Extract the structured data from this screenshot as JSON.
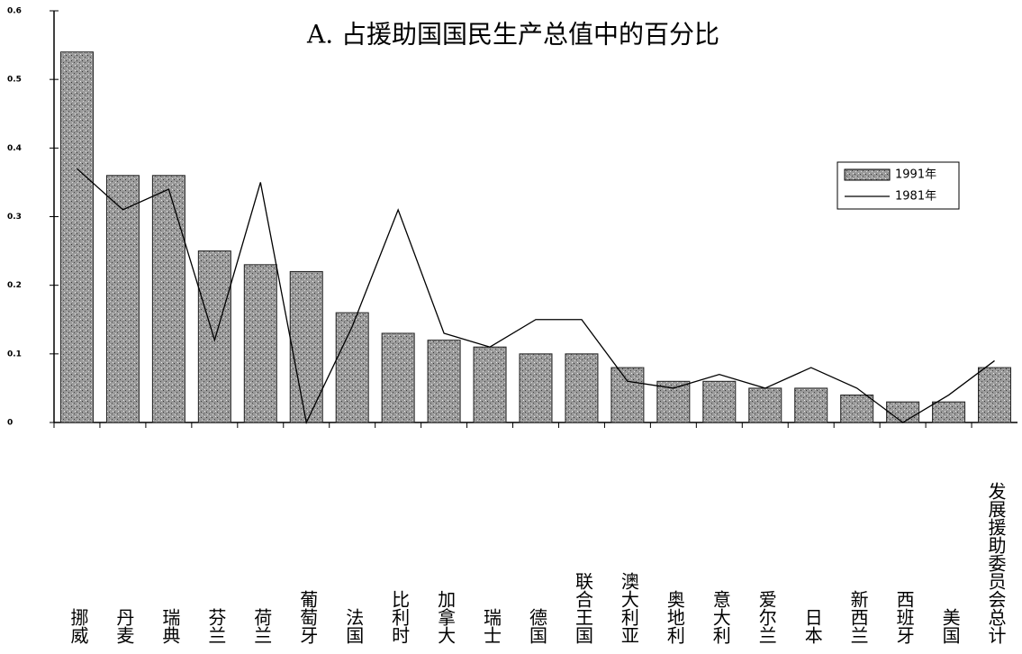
{
  "chart_data": {
    "type": "bar_line",
    "title": "A. 占援助国国民生产总值中的百分比",
    "categories": [
      "挪威",
      "丹麦",
      "瑞典",
      "芬兰",
      "荷兰",
      "葡萄牙",
      "法国",
      "比利时",
      "加拿大",
      "瑞士",
      "德国",
      "联合王国",
      "澳大利亚",
      "奥地利",
      "意大利",
      "爱尔兰",
      "日本",
      "新西兰",
      "西班牙",
      "美国",
      "发展援助委员会总计"
    ],
    "series": [
      {
        "name": "1991年",
        "type": "bar",
        "color": "#8a8a8a",
        "values": [
          0.54,
          0.36,
          0.36,
          0.25,
          0.23,
          0.22,
          0.16,
          0.13,
          0.12,
          0.11,
          0.1,
          0.1,
          0.08,
          0.06,
          0.06,
          0.05,
          0.05,
          0.04,
          0.03,
          0.03,
          0.08
        ]
      },
      {
        "name": "1981年",
        "type": "line",
        "color": "#000000",
        "values": [
          0.37,
          0.31,
          0.34,
          0.12,
          0.35,
          0.0,
          0.14,
          0.31,
          0.13,
          0.11,
          0.15,
          0.15,
          0.06,
          0.05,
          0.07,
          0.05,
          0.08,
          0.05,
          0.0,
          0.04,
          0.09
        ]
      }
    ],
    "ylim": [
      0,
      0.6
    ],
    "yticks": [
      0,
      0.1,
      0.2,
      0.3,
      0.4,
      0.5,
      0.6
    ],
    "legend": "upper right"
  }
}
